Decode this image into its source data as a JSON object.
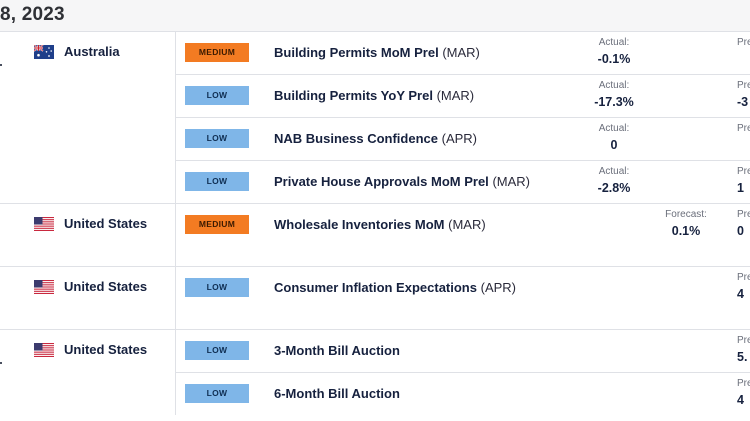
{
  "header": {
    "date": "8, 2023"
  },
  "groups": [
    {
      "country": "Australia",
      "flag": "australia-flag",
      "events": [
        {
          "impact": "MEDIUM",
          "title": "Building Permits MoM Prel",
          "period": "(MAR)",
          "actual_label": "Actual:",
          "actual": "-0.1%",
          "prev_label": "Pre",
          "prev": ""
        },
        {
          "impact": "LOW",
          "title": "Building Permits YoY Prel",
          "period": "(MAR)",
          "actual_label": "Actual:",
          "actual": "-17.3%",
          "prev_label": "Pre",
          "prev": "-3"
        },
        {
          "impact": "LOW",
          "title": "NAB Business Confidence",
          "period": "(APR)",
          "actual_label": "Actual:",
          "actual": "0",
          "prev_label": "Pre",
          "prev": ""
        },
        {
          "impact": "LOW",
          "title": "Private House Approvals MoM Prel",
          "period": "(MAR)",
          "actual_label": "Actual:",
          "actual": "-2.8%",
          "prev_label": "Pre",
          "prev": "1"
        }
      ]
    },
    {
      "country": "United States",
      "flag": "united-states-flag",
      "events": [
        {
          "impact": "MEDIUM",
          "title": "Wholesale Inventories MoM",
          "period": "(MAR)",
          "forecast_label": "Forecast:",
          "forecast": "0.1%",
          "prev_label": "Pre",
          "prev": "0"
        }
      ]
    },
    {
      "country": "United States",
      "flag": "united-states-flag",
      "events": [
        {
          "impact": "LOW",
          "title": "Consumer Inflation Expectations",
          "period": "(APR)",
          "prev_label": "Pre",
          "prev": "4"
        }
      ]
    },
    {
      "country": "United States",
      "flag": "united-states-flag",
      "events": [
        {
          "impact": "LOW",
          "title": "3-Month Bill Auction",
          "period": "",
          "prev_label": "Pre",
          "prev": "5."
        },
        {
          "impact": "LOW",
          "title": "6-Month Bill Auction",
          "period": "",
          "prev_label": "Pre",
          "prev": "4"
        }
      ]
    }
  ],
  "colors": {
    "medium": "#f37b22",
    "low": "#7fb6e8",
    "border": "#dfe1e6"
  }
}
